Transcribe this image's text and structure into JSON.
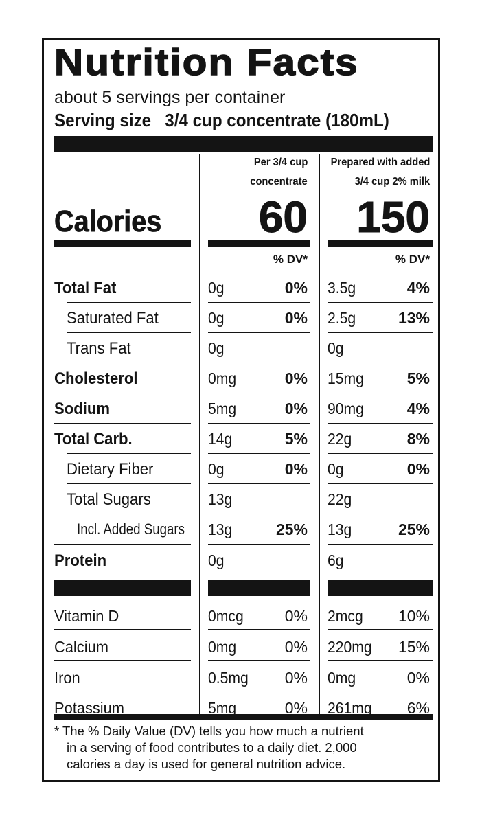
{
  "title": "Nutrition Facts",
  "servings_per_container": "about 5 servings per container",
  "serving_size_label": "Serving size",
  "serving_size_value": "3/4 cup concentrate (180mL)",
  "columns": [
    {
      "line1": "Per 3/4 cup",
      "line2": "concentrate",
      "calories": "60"
    },
    {
      "line1": "Prepared with added",
      "line2": "3/4 cup 2% milk",
      "calories": "150"
    }
  ],
  "calories_label": "Calories",
  "dv_header": "% DV*",
  "nutrients": [
    {
      "name": "Total Fat",
      "c1_amt": "0g",
      "c1_dv": "0%",
      "c2_amt": "3.5g",
      "c2_dv": "4%"
    },
    {
      "name": "Saturated Fat",
      "c1_amt": "0g",
      "c1_dv": "0%",
      "c2_amt": "2.5g",
      "c2_dv": "13%"
    },
    {
      "name": "Trans Fat",
      "c1_amt": "0g",
      "c1_dv": "",
      "c2_amt": "0g",
      "c2_dv": ""
    },
    {
      "name": "Cholesterol",
      "c1_amt": "0mg",
      "c1_dv": "0%",
      "c2_amt": "15mg",
      "c2_dv": "5%"
    },
    {
      "name": "Sodium",
      "c1_amt": "5mg",
      "c1_dv": "0%",
      "c2_amt": "90mg",
      "c2_dv": "4%"
    },
    {
      "name": "Total Carb.",
      "c1_amt": "14g",
      "c1_dv": "5%",
      "c2_amt": "22g",
      "c2_dv": "8%"
    },
    {
      "name": "Dietary Fiber",
      "c1_amt": "0g",
      "c1_dv": "0%",
      "c2_amt": "0g",
      "c2_dv": "0%"
    },
    {
      "name": "Total Sugars",
      "c1_amt": "13g",
      "c1_dv": "",
      "c2_amt": "22g",
      "c2_dv": ""
    },
    {
      "name": "Incl. Added Sugars",
      "c1_amt": "13g",
      "c1_dv": "25%",
      "c2_amt": "13g",
      "c2_dv": "25%"
    },
    {
      "name": "Protein",
      "c1_amt": "0g",
      "c1_dv": "",
      "c2_amt": "6g",
      "c2_dv": ""
    }
  ],
  "vitamins": [
    {
      "name": "Vitamin D",
      "c1_amt": "0mcg",
      "c1_dv": "0%",
      "c2_amt": "2mcg",
      "c2_dv": "10%"
    },
    {
      "name": "Calcium",
      "c1_amt": "0mg",
      "c1_dv": "0%",
      "c2_amt": "220mg",
      "c2_dv": "15%"
    },
    {
      "name": "Iron",
      "c1_amt": "0.5mg",
      "c1_dv": "0%",
      "c2_amt": "0mg",
      "c2_dv": "0%"
    },
    {
      "name": "Potassium",
      "c1_amt": "5mg",
      "c1_dv": "0%",
      "c2_amt": "261mg",
      "c2_dv": "6%"
    }
  ],
  "footnote": {
    "line1": "* The % Daily Value (DV) tells you how much a nutrient",
    "line2": "in a serving of food contributes to a daily diet. 2,000",
    "line3": "calories a day is used for general nutrition advice."
  }
}
